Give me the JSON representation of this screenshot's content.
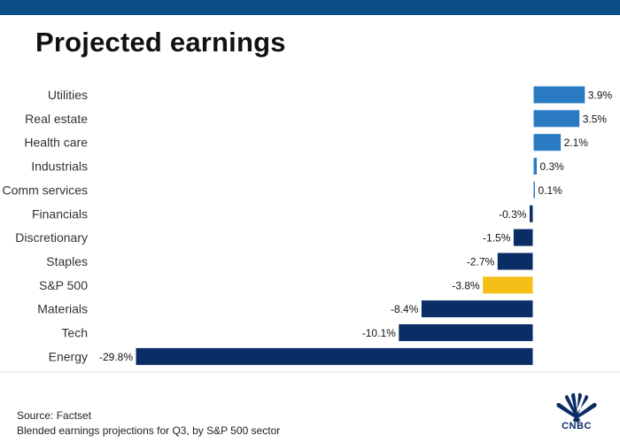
{
  "title": "Projected earnings",
  "footer": {
    "source": "Source: Factset",
    "note": "Blended earnings projections for Q3, by S&P 500 sector"
  },
  "logo": {
    "text": "CNBC",
    "icon": "peacock-icon"
  },
  "colors": {
    "top_bar": "#0b4f86",
    "positive": "#2a7bc1",
    "negative": "#0b2d66",
    "highlight": "#f5bf17",
    "outline": "#ffffff"
  },
  "chart_data": {
    "type": "bar",
    "orientation": "horizontal",
    "title": "Projected earnings",
    "xlabel": "",
    "ylabel": "",
    "categories": [
      "Utilities",
      "Real estate",
      "Health care",
      "Industrials",
      "Comm services",
      "Financials",
      "Discretionary",
      "Staples",
      "S&P 500",
      "Materials",
      "Tech",
      "Energy"
    ],
    "values": [
      3.9,
      3.5,
      2.1,
      0.3,
      0.1,
      -0.3,
      -1.5,
      -2.7,
      -3.8,
      -8.4,
      -10.1,
      -29.8
    ],
    "value_labels": [
      "3.9%",
      "3.5%",
      "2.1%",
      "0.3%",
      "0.1%",
      "-0.3%",
      "-1.5%",
      "-2.7%",
      "-3.8%",
      "-8.4%",
      "-10.1%",
      "-29.8%"
    ],
    "highlight_category": "S&P 500",
    "xlim": [
      -30,
      4
    ],
    "grid": false,
    "legend": "none"
  }
}
